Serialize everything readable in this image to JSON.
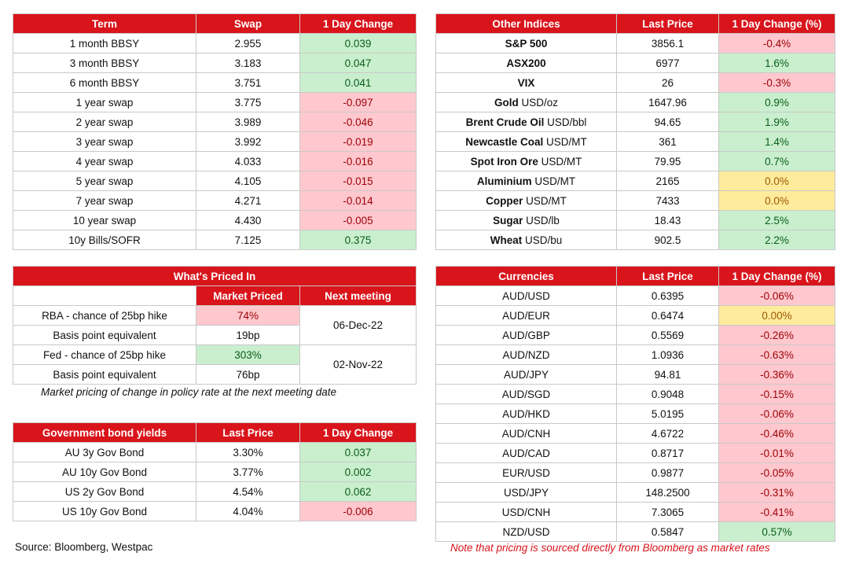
{
  "term_table": {
    "headers": [
      "Term",
      "Swap",
      "1 Day Change"
    ],
    "rows": [
      {
        "term": "1 month BBSY",
        "swap": "2.955",
        "change": "0.039",
        "dir": "pos"
      },
      {
        "term": "3 month BBSY",
        "swap": "3.183",
        "change": "0.047",
        "dir": "pos"
      },
      {
        "term": "6 month BBSY",
        "swap": "3.751",
        "change": "0.041",
        "dir": "pos"
      },
      {
        "term": "1 year swap",
        "swap": "3.775",
        "change": "-0.097",
        "dir": "neg"
      },
      {
        "term": "2 year swap",
        "swap": "3.989",
        "change": "-0.046",
        "dir": "neg"
      },
      {
        "term": "3 year swap",
        "swap": "3.992",
        "change": "-0.019",
        "dir": "neg"
      },
      {
        "term": "4 year swap",
        "swap": "4.033",
        "change": "-0.016",
        "dir": "neg"
      },
      {
        "term": "5 year swap",
        "swap": "4.105",
        "change": "-0.015",
        "dir": "neg"
      },
      {
        "term": "7 year swap",
        "swap": "4.271",
        "change": "-0.014",
        "dir": "neg"
      },
      {
        "term": "10 year swap",
        "swap": "4.430",
        "change": "-0.005",
        "dir": "neg"
      },
      {
        "term": "10y Bills/SOFR",
        "swap": "7.125",
        "change": "0.375",
        "dir": "pos"
      }
    ]
  },
  "indices_table": {
    "headers": [
      "Other Indices",
      "Last Price",
      "1 Day Change (%)"
    ],
    "rows": [
      {
        "name": "S&P 500",
        "unit": "",
        "price": "3856.1",
        "change": "-0.4%",
        "dir": "neg"
      },
      {
        "name": "ASX200",
        "unit": "",
        "price": "6977",
        "change": "1.6%",
        "dir": "pos"
      },
      {
        "name": "VIX",
        "unit": "",
        "price": "26",
        "change": "-0.3%",
        "dir": "neg"
      },
      {
        "name": "Gold",
        "unit": "USD/oz",
        "price": "1647.96",
        "change": "0.9%",
        "dir": "pos"
      },
      {
        "name": "Brent Crude Oil",
        "unit": "USD/bbl",
        "price": "94.65",
        "change": "1.9%",
        "dir": "pos"
      },
      {
        "name": "Newcastle Coal",
        "unit": "USD/MT",
        "price": "361",
        "change": "1.4%",
        "dir": "pos"
      },
      {
        "name": "Spot Iron Ore",
        "unit": "USD/MT",
        "price": "79.95",
        "change": "0.7%",
        "dir": "pos"
      },
      {
        "name": "Aluminium",
        "unit": "USD/MT",
        "price": "2165",
        "change": "0.0%",
        "dir": "neu"
      },
      {
        "name": "Copper",
        "unit": "USD/MT",
        "price": "7433",
        "change": "0.0%",
        "dir": "neu"
      },
      {
        "name": "Sugar",
        "unit": "USD/lb",
        "price": "18.43",
        "change": "2.5%",
        "dir": "pos"
      },
      {
        "name": "Wheat",
        "unit": "USD/bu",
        "price": "902.5",
        "change": "2.2%",
        "dir": "pos"
      }
    ]
  },
  "priced_in": {
    "title": "What's Priced In",
    "headers": [
      "Market Priced",
      "Next meeting"
    ],
    "rows": [
      {
        "label": "RBA - chance of 25bp hike",
        "value": "74%",
        "dir": "neg"
      },
      {
        "label": "Basis point equivalent",
        "value": "19bp",
        "dir": ""
      },
      {
        "label": "Fed - chance of 25bp hike",
        "value": "303%",
        "dir": "pos"
      },
      {
        "label": "Basis point equivalent",
        "value": "76bp",
        "dir": ""
      }
    ],
    "meetings": [
      "06-Dec-22",
      "02-Nov-22"
    ],
    "note": "Market pricing of change in policy rate at the next meeting date"
  },
  "bonds_table": {
    "headers": [
      "Government bond yields",
      "Last Price",
      "1 Day Change"
    ],
    "rows": [
      {
        "name": "AU 3y Gov Bond",
        "price": "3.30%",
        "change": "0.037",
        "dir": "pos"
      },
      {
        "name": "AU 10y Gov Bond",
        "price": "3.77%",
        "change": "0.002",
        "dir": "pos"
      },
      {
        "name": "US 2y Gov Bond",
        "price": "4.54%",
        "change": "0.062",
        "dir": "pos"
      },
      {
        "name": "US 10y Gov Bond",
        "price": "4.04%",
        "change": "-0.006",
        "dir": "neg"
      }
    ]
  },
  "currencies_table": {
    "headers": [
      "Currencies",
      "Last Price",
      "1 Day Change (%)"
    ],
    "rows": [
      {
        "pair": "AUD/USD",
        "price": "0.6395",
        "change": "-0.06%",
        "dir": "neg"
      },
      {
        "pair": "AUD/EUR",
        "price": "0.6474",
        "change": "0.00%",
        "dir": "neu"
      },
      {
        "pair": "AUD/GBP",
        "price": "0.5569",
        "change": "-0.26%",
        "dir": "neg"
      },
      {
        "pair": "AUD/NZD",
        "price": "1.0936",
        "change": "-0.63%",
        "dir": "neg"
      },
      {
        "pair": "AUD/JPY",
        "price": "94.81",
        "change": "-0.36%",
        "dir": "neg"
      },
      {
        "pair": "AUD/SGD",
        "price": "0.9048",
        "change": "-0.15%",
        "dir": "neg"
      },
      {
        "pair": "AUD/HKD",
        "price": "5.0195",
        "change": "-0.06%",
        "dir": "neg"
      },
      {
        "pair": "AUD/CNH",
        "price": "4.6722",
        "change": "-0.46%",
        "dir": "neg"
      },
      {
        "pair": "AUD/CAD",
        "price": "0.8717",
        "change": "-0.01%",
        "dir": "neg"
      },
      {
        "pair": "EUR/USD",
        "price": "0.9877",
        "change": "-0.05%",
        "dir": "neg"
      },
      {
        "pair": "USD/JPY",
        "price": "148.2500",
        "change": "-0.31%",
        "dir": "neg"
      },
      {
        "pair": "USD/CNH",
        "price": "7.3065",
        "change": "-0.41%",
        "dir": "neg"
      },
      {
        "pair": "NZD/USD",
        "price": "0.5847",
        "change": "0.57%",
        "dir": "pos"
      }
    ]
  },
  "source_text": "Source: Bloomberg, Westpac",
  "pricing_note": "Note that pricing is sourced directly from Bloomberg as market rates"
}
